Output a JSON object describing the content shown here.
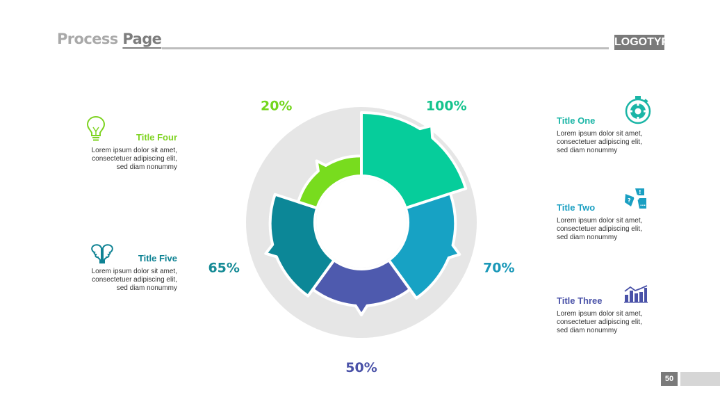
{
  "header": {
    "title_part1": "Process ",
    "title_part2": "Page",
    "logo": "LOGOTYPE"
  },
  "blocks": [
    {
      "key": "one",
      "title": "Title One",
      "icon": "gear-timer-icon",
      "color": "#1ab5a6",
      "body": "Lorem ipsum dolor sit amet,\nconsectetuer adipiscing elit,\nsed diam nonummy"
    },
    {
      "key": "two",
      "title": "Title Two",
      "icon": "puzzle-question-icon",
      "color": "#1a9fc2",
      "body": "Lorem ipsum dolor sit amet,\nconsectetuer adipiscing elit,\nsed diam nonummy"
    },
    {
      "key": "three",
      "title": "Title Three",
      "icon": "bar-chart-icon",
      "color": "#4a52a8",
      "body": "Lorem ipsum dolor sit amet,\nconsectetuer adipiscing elit,\nsed diam nonummy"
    },
    {
      "key": "four",
      "title": "Title Four",
      "icon": "lightbulb-icon",
      "color": "#7ed321",
      "body": "Lorem ipsum dolor sit amet,\nconsectetuer adipiscing elit,\nsed diam nonummy"
    },
    {
      "key": "five",
      "title": "Title Five",
      "icon": "two-heads-icon",
      "color": "#0e8293",
      "body": "Lorem ipsum dolor sit amet,\nconsectetuer adipiscing elit,\nsed diam nonummy"
    }
  ],
  "chart_data": {
    "type": "pie",
    "segments": [
      {
        "label": "100%",
        "value": 100,
        "color": "#06cd9b"
      },
      {
        "label": "70%",
        "value": 70,
        "color": "#17a2c4"
      },
      {
        "label": "50%",
        "value": 50,
        "color": "#4e5aae"
      },
      {
        "label": "65%",
        "value": 65,
        "color": "#0c8797"
      },
      {
        "label": "20%",
        "value": 20,
        "color": "#78dc1e"
      }
    ],
    "label_colors": [
      "#14c38d",
      "#1a98b8",
      "#4a52a8",
      "#168b96",
      "#74d61e"
    ],
    "track_color": "#e6e6e6",
    "grid": false,
    "legend": "none"
  },
  "footer": {
    "page_number": "50"
  }
}
